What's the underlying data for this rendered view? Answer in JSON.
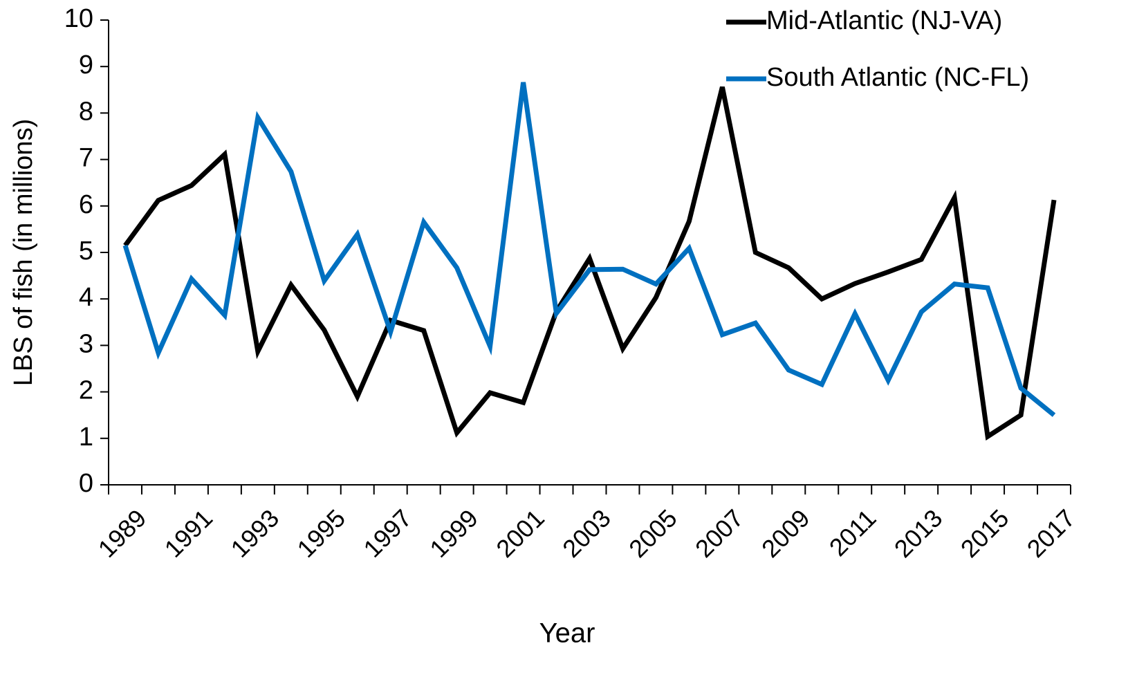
{
  "chart_data": {
    "type": "line",
    "x_label": "Year",
    "y_label": "LBS of fish (in millions)",
    "categories": [
      "1989",
      null,
      "1991",
      null,
      "1993",
      null,
      "1995",
      null,
      "1997",
      null,
      "1999",
      null,
      "2001",
      null,
      "2003",
      null,
      "2005",
      null,
      "2007",
      null,
      "2009",
      null,
      "2011",
      null,
      "2013",
      null,
      "2015",
      null,
      "2017"
    ],
    "series": [
      {
        "name": "Mid-Atlantic (NJ-VA)",
        "color": "#000000",
        "values": [
          5.15,
          6.12,
          6.44,
          7.11,
          2.87,
          4.3,
          3.33,
          1.9,
          3.54,
          3.32,
          1.12,
          1.98,
          1.77,
          3.73,
          4.87,
          2.93,
          4.03,
          5.67,
          8.56,
          5.0,
          4.67,
          4.0,
          4.33,
          4.58,
          4.85,
          6.18,
          1.04,
          1.5,
          6.13
        ]
      },
      {
        "name": "South Atlantic (NC-FL)",
        "color": "#0070c0",
        "values": [
          5.15,
          2.84,
          4.43,
          3.65,
          7.9,
          6.74,
          4.39,
          5.39,
          3.29,
          5.65,
          4.67,
          2.98,
          8.66,
          3.69,
          4.63,
          4.64,
          4.32,
          5.09,
          3.23,
          3.48,
          2.47,
          2.16,
          3.68,
          2.25,
          3.72,
          4.32,
          4.24,
          2.08,
          1.5
        ]
      }
    ],
    "ylim": [
      0,
      10
    ],
    "yticks": [
      0,
      1,
      2,
      3,
      4,
      5,
      6,
      7,
      8,
      9,
      10
    ],
    "legend": "upper right",
    "grid": false
  }
}
